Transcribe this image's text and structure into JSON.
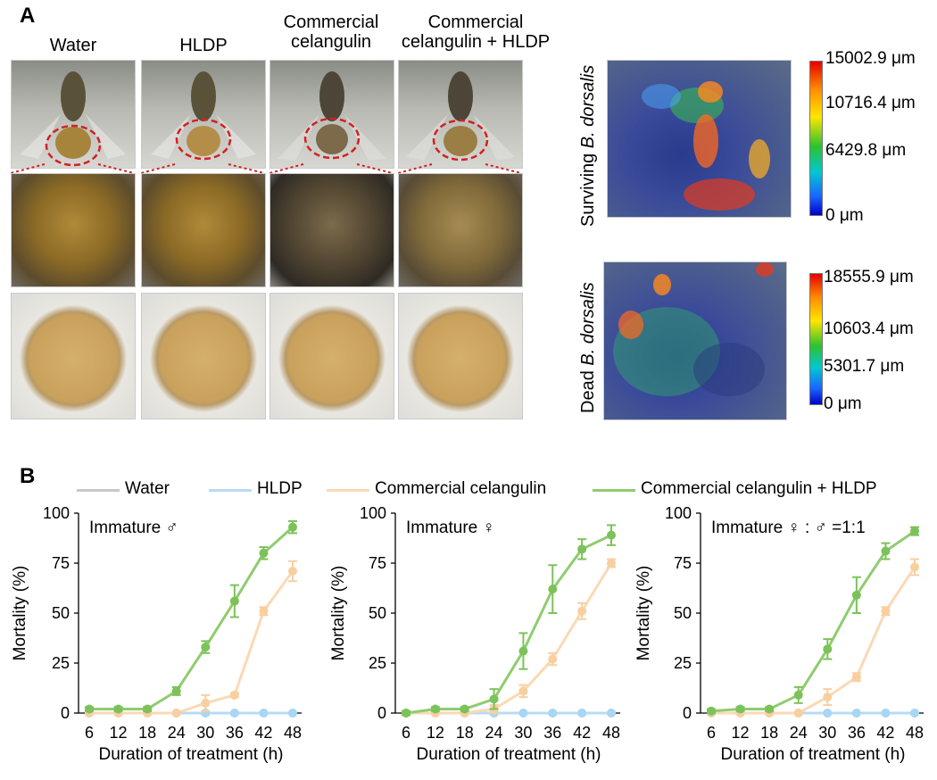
{
  "panel_a": {
    "letter": "A",
    "columns": [
      {
        "label": "Water"
      },
      {
        "label": "HLDP"
      },
      {
        "label": "Commercial\ncelangulin"
      },
      {
        "label": "Commercial\ncelangulin + HLDP"
      }
    ],
    "heatmaps": [
      {
        "label_prefix": "Surviving ",
        "label_species": "B. dorsalis",
        "ticks": [
          "15002.9 μm",
          "10716.4 μm",
          "6429.8 μm",
          "0 μm"
        ]
      },
      {
        "label_prefix": "Dead ",
        "label_species": "B. dorsalis",
        "ticks": [
          "18555.9 μm",
          "10603.4 μm",
          "5301.7 μm",
          "0 μm"
        ]
      }
    ]
  },
  "panel_b": {
    "letter": "B",
    "legend": [
      {
        "name": "Water",
        "color": "#c8c8c8"
      },
      {
        "name": "HLDP",
        "color": "#b7dcf3"
      },
      {
        "name": "Commercial celangulin",
        "color": "#fbd9b5"
      },
      {
        "name": "Commercial celangulin + HLDP",
        "color": "#8fcc6e"
      }
    ]
  },
  "chart_data": [
    {
      "type": "line",
      "title": "Immature ♂",
      "xlabel": "Duration of treatment (h)",
      "ylabel": "Mortality (%)",
      "x": [
        6,
        12,
        18,
        24,
        30,
        36,
        42,
        48
      ],
      "ylim": [
        0,
        100
      ],
      "yticks": [
        0,
        25,
        50,
        75,
        100
      ],
      "series": [
        {
          "name": "Water",
          "values": [
            0,
            0,
            0,
            0,
            0,
            0,
            0,
            0
          ],
          "errors": [
            0,
            0,
            0,
            0,
            0,
            0,
            0,
            0
          ]
        },
        {
          "name": "HLDP",
          "values": [
            0,
            0,
            0,
            0,
            0,
            0,
            0,
            0
          ],
          "errors": [
            0,
            0,
            0,
            0,
            0,
            0,
            0,
            0
          ]
        },
        {
          "name": "Commercial celangulin",
          "values": [
            0,
            0,
            0,
            0,
            5,
            9,
            51,
            71
          ],
          "errors": [
            0,
            0,
            0,
            0,
            4,
            1,
            2,
            5
          ]
        },
        {
          "name": "Commercial celangulin + HLDP",
          "values": [
            2,
            2,
            2,
            11,
            33,
            56,
            80,
            93
          ],
          "errors": [
            1,
            1,
            1,
            2,
            3,
            8,
            3,
            3
          ]
        }
      ]
    },
    {
      "type": "line",
      "title": "Immature ♀",
      "xlabel": "Duration of treatment (h)",
      "ylabel": "Mortality (%)",
      "x": [
        6,
        12,
        18,
        24,
        30,
        36,
        42,
        48
      ],
      "ylim": [
        0,
        100
      ],
      "yticks": [
        0,
        25,
        50,
        75,
        100
      ],
      "series": [
        {
          "name": "Water",
          "values": [
            0,
            0,
            0,
            0,
            0,
            0,
            0,
            0
          ],
          "errors": [
            0,
            0,
            0,
            0,
            0,
            0,
            0,
            0
          ]
        },
        {
          "name": "HLDP",
          "values": [
            0,
            0,
            0,
            0,
            0,
            0,
            0,
            0
          ],
          "errors": [
            0,
            0,
            0,
            0,
            0,
            0,
            0,
            0
          ]
        },
        {
          "name": "Commercial celangulin",
          "values": [
            0,
            0,
            0,
            2,
            11,
            27,
            51,
            75
          ],
          "errors": [
            0,
            0,
            0,
            2,
            3,
            3,
            4,
            2
          ]
        },
        {
          "name": "Commercial celangulin + HLDP",
          "values": [
            0,
            2,
            2,
            7,
            31,
            62,
            82,
            89
          ],
          "errors": [
            1,
            1,
            1,
            5,
            9,
            12,
            5,
            5
          ]
        }
      ]
    },
    {
      "type": "line",
      "title": "Immature ♀ : ♂ =1:1",
      "xlabel": "Duration of treatment (h)",
      "ylabel": "Mortality (%)",
      "x": [
        6,
        12,
        18,
        24,
        30,
        36,
        42,
        48
      ],
      "ylim": [
        0,
        100
      ],
      "yticks": [
        0,
        25,
        50,
        75,
        100
      ],
      "series": [
        {
          "name": "Water",
          "values": [
            0,
            0,
            0,
            0,
            0,
            0,
            0,
            0
          ],
          "errors": [
            0,
            0,
            0,
            0,
            0,
            0,
            0,
            0
          ]
        },
        {
          "name": "HLDP",
          "values": [
            0,
            0,
            0,
            0,
            0,
            0,
            0,
            0
          ],
          "errors": [
            0,
            0,
            0,
            0,
            0,
            0,
            0,
            0
          ]
        },
        {
          "name": "Commercial celangulin",
          "values": [
            0,
            0,
            0,
            0,
            8,
            18,
            51,
            73
          ],
          "errors": [
            0,
            0,
            0,
            0,
            4,
            2,
            2,
            4
          ]
        },
        {
          "name": "Commercial celangulin + HLDP",
          "values": [
            1,
            2,
            2,
            9,
            32,
            59,
            81,
            91
          ],
          "errors": [
            1,
            1,
            1,
            4,
            5,
            9,
            4,
            2
          ]
        }
      ]
    }
  ]
}
